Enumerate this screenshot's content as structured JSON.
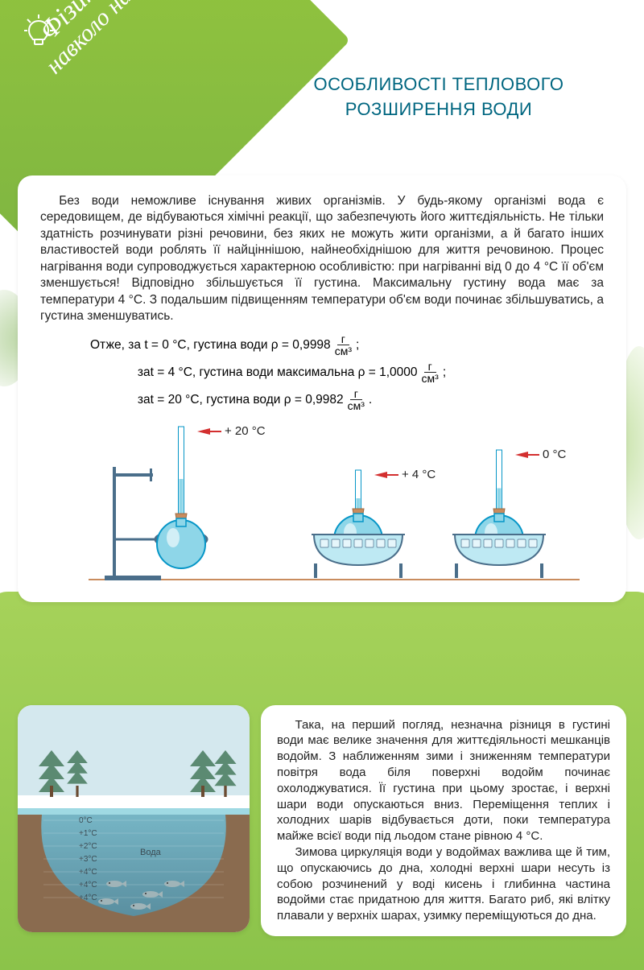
{
  "header": {
    "diag_line1": "Фізика",
    "diag_line2": "навколо нас",
    "title": "ОСОБЛИВОСТІ ТЕПЛОВОГО РОЗШИРЕННЯ ВОДИ"
  },
  "card1": {
    "p1": "Без води неможливе існування живих організмів. У будь-якому організмі вода є середовищем, де відбуваються хімічні реакції, що забезпечують його життєдіяльність. Не тільки здатність розчинувати різні речовини, без яких не можуть жити організми, а й багато інших властивостей води роблять її найціннішою, найнеобхіднішою для життя речовиною. Процес нагрівання води супроводжується характерною особливістю: при нагріванні від 0 до 4 °С її об'єм зменшується! Відповідно збільшується її густина. Максимальну густину вода має за температури 4 °С. З подальшим підвищенням температури об'єм води починає збільшуватись, а густина зменшуватись.",
    "formula": {
      "intro": "Отже, за ",
      "l1_a": "t  = 0 °С, густина води ρ = 0,9998 ",
      "l2_pre": "за ",
      "l2_a": "t = 4 °С, густина води максимальна ρ = 1,0000 ",
      "l3_pre": "за ",
      "l3_a": "t  = 20 °С, густина води ρ = 0,9982 ",
      "frac_num": "г",
      "frac_den": "см³",
      "end1": " ;",
      "end2": " ;",
      "end3": " ."
    },
    "diagram": {
      "temp_labels": [
        "+ 20 °С",
        "+ 4 °С",
        "0 °С"
      ],
      "colors": {
        "flask_fill": "#8ED6E8",
        "flask_stroke": "#0696C7",
        "stand": "#4A6E8A",
        "cork": "#C98C5E",
        "arrow": "#D32F2F",
        "tube": "#0696C7",
        "base_line": "#C98C5E",
        "basin_stroke": "#4A6E8A",
        "basin_fill": "#BEE9F3",
        "ice": "#E6F6FB"
      },
      "tube_heights": [
        90,
        30,
        55
      ]
    }
  },
  "pond": {
    "temps": [
      "0°С",
      "+1°С",
      "+2°С",
      "+3°С",
      "+4°С",
      "+4°С",
      "+4°С"
    ],
    "label": "Вода",
    "colors": {
      "sky": "#D4E8EE",
      "snow": "#FFFFFF",
      "tree": "#5B8A72",
      "ice_surface": "#9FD9E3",
      "ground": "#8A6B4F",
      "water_top": "#76B5C5",
      "water_bottom": "#5A8FA0",
      "fish": "#A0B4B8",
      "text": "#3A4A52"
    }
  },
  "card2": {
    "p1": "Така, на перший погляд, незначна різниця в густині води має велике значення для життєдіяльності мешканців водойм. З наближенням зими і зниженням температури повітря вода біля поверхні водойм починає охолоджуватися. Її густина при цьому зростає, і верхні шари води опускаються вниз. Переміщення теплих і холодних шарів відбувається доти, поки температура майже всієї води під льодом стане рівною 4 °С.",
    "p2": "Зимова циркуляція води у водоймах важлива ще й тим, що опускаючись до дна, холодні верхні шари несуть із собою розчинений у воді кисень і глибинна частина водойми стає придатною для життя. Багато риб, які влітку плавали у верхніх шарах, узимку переміщуються до дна."
  }
}
